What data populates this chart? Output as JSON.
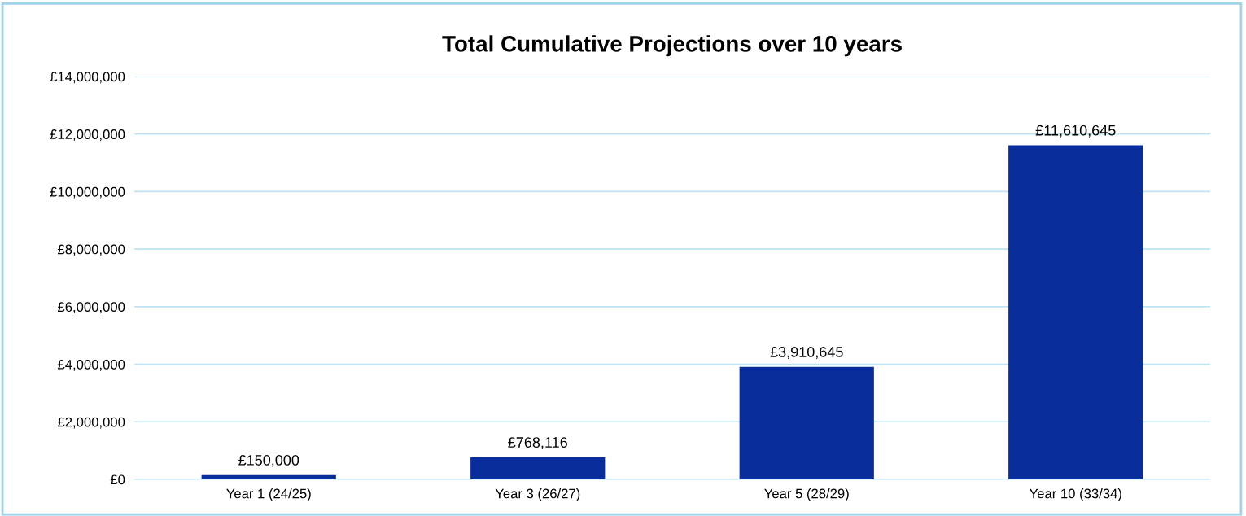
{
  "chart_data": {
    "type": "bar",
    "title": "Total Cumulative Projections over 10 years",
    "categories": [
      "Year 1 (24/25)",
      "Year 3 (26/27)",
      "Year 5 (28/29)",
      "Year 10 (33/34)"
    ],
    "values": [
      150000,
      768116,
      3910645,
      11610645
    ],
    "value_labels": [
      "£150,000",
      "£768,116",
      "£3,910,645",
      "£11,610,645"
    ],
    "color": "#0a2d9c",
    "ylim": [
      0,
      14000000
    ],
    "yticks": [
      {
        "value": 0,
        "label": "£0"
      },
      {
        "value": 2000000,
        "label": "£2,000,000"
      },
      {
        "value": 4000000,
        "label": "£4,000,000"
      },
      {
        "value": 6000000,
        "label": "£6,000,000"
      },
      {
        "value": 8000000,
        "label": "£8,000,000"
      },
      {
        "value": 10000000,
        "label": "£10,000,000"
      },
      {
        "value": 12000000,
        "label": "£12,000,000"
      },
      {
        "value": 14000000,
        "label": "£14,000,000"
      }
    ],
    "grid": "y"
  }
}
